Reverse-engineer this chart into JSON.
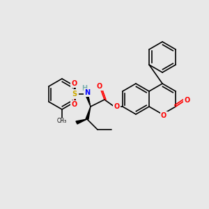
{
  "bg_color": "#e8e8e8",
  "bond_color": "#000000",
  "bond_width": 1.2,
  "atom_colors": {
    "O": "#ff0000",
    "N": "#0000ff",
    "S": "#ccaa00",
    "H": "#7aafaf"
  }
}
